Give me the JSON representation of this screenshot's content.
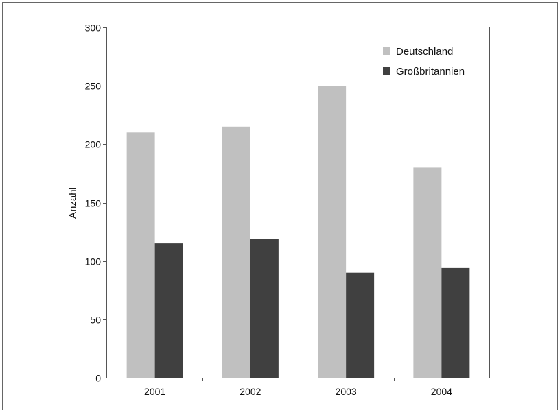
{
  "chart_data": {
    "type": "bar",
    "title": "",
    "xlabel": "",
    "ylabel": "Anzahl",
    "ylim": [
      0,
      300
    ],
    "yticks": [
      0,
      50,
      100,
      150,
      200,
      250,
      300
    ],
    "categories": [
      "2001",
      "2002",
      "2003",
      "2004"
    ],
    "series": [
      {
        "name": "Deutschland",
        "values": [
          210,
          215,
          250,
          180
        ],
        "color": "#c0c0c0"
      },
      {
        "name": "Großbritannien",
        "values": [
          115,
          119,
          90,
          94
        ],
        "color": "#404040"
      }
    ],
    "grid": false,
    "legend_position": "top-right"
  }
}
